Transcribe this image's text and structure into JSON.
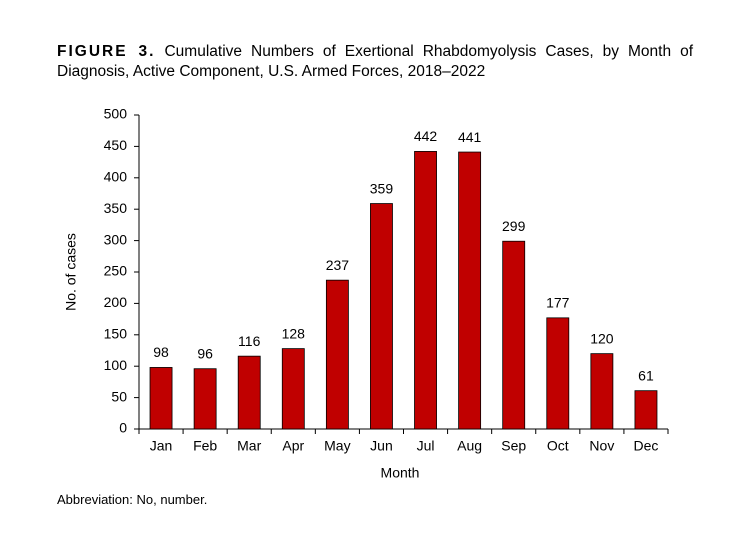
{
  "chart_data": {
    "type": "bar",
    "figure_label": "FIGURE 3.",
    "title": "Cumulative Numbers of Exertional Rhabdomyolysis Cases, by Month of Diagnosis, Active Component, U.S. Armed Forces, 2018–2022",
    "x_label": "Month",
    "y_label": "No. of cases",
    "categories": [
      "Jan",
      "Feb",
      "Mar",
      "Apr",
      "May",
      "Jun",
      "Jul",
      "Aug",
      "Sep",
      "Oct",
      "Nov",
      "Dec"
    ],
    "values": [
      98,
      96,
      116,
      128,
      237,
      359,
      442,
      441,
      299,
      177,
      120,
      61
    ],
    "color": "#c00000",
    "ylim": [
      0,
      500
    ],
    "yticks": [
      0,
      50,
      100,
      150,
      200,
      250,
      300,
      350,
      400,
      450,
      500
    ],
    "grid": false,
    "footnote": "Abbreviation: No, number."
  }
}
